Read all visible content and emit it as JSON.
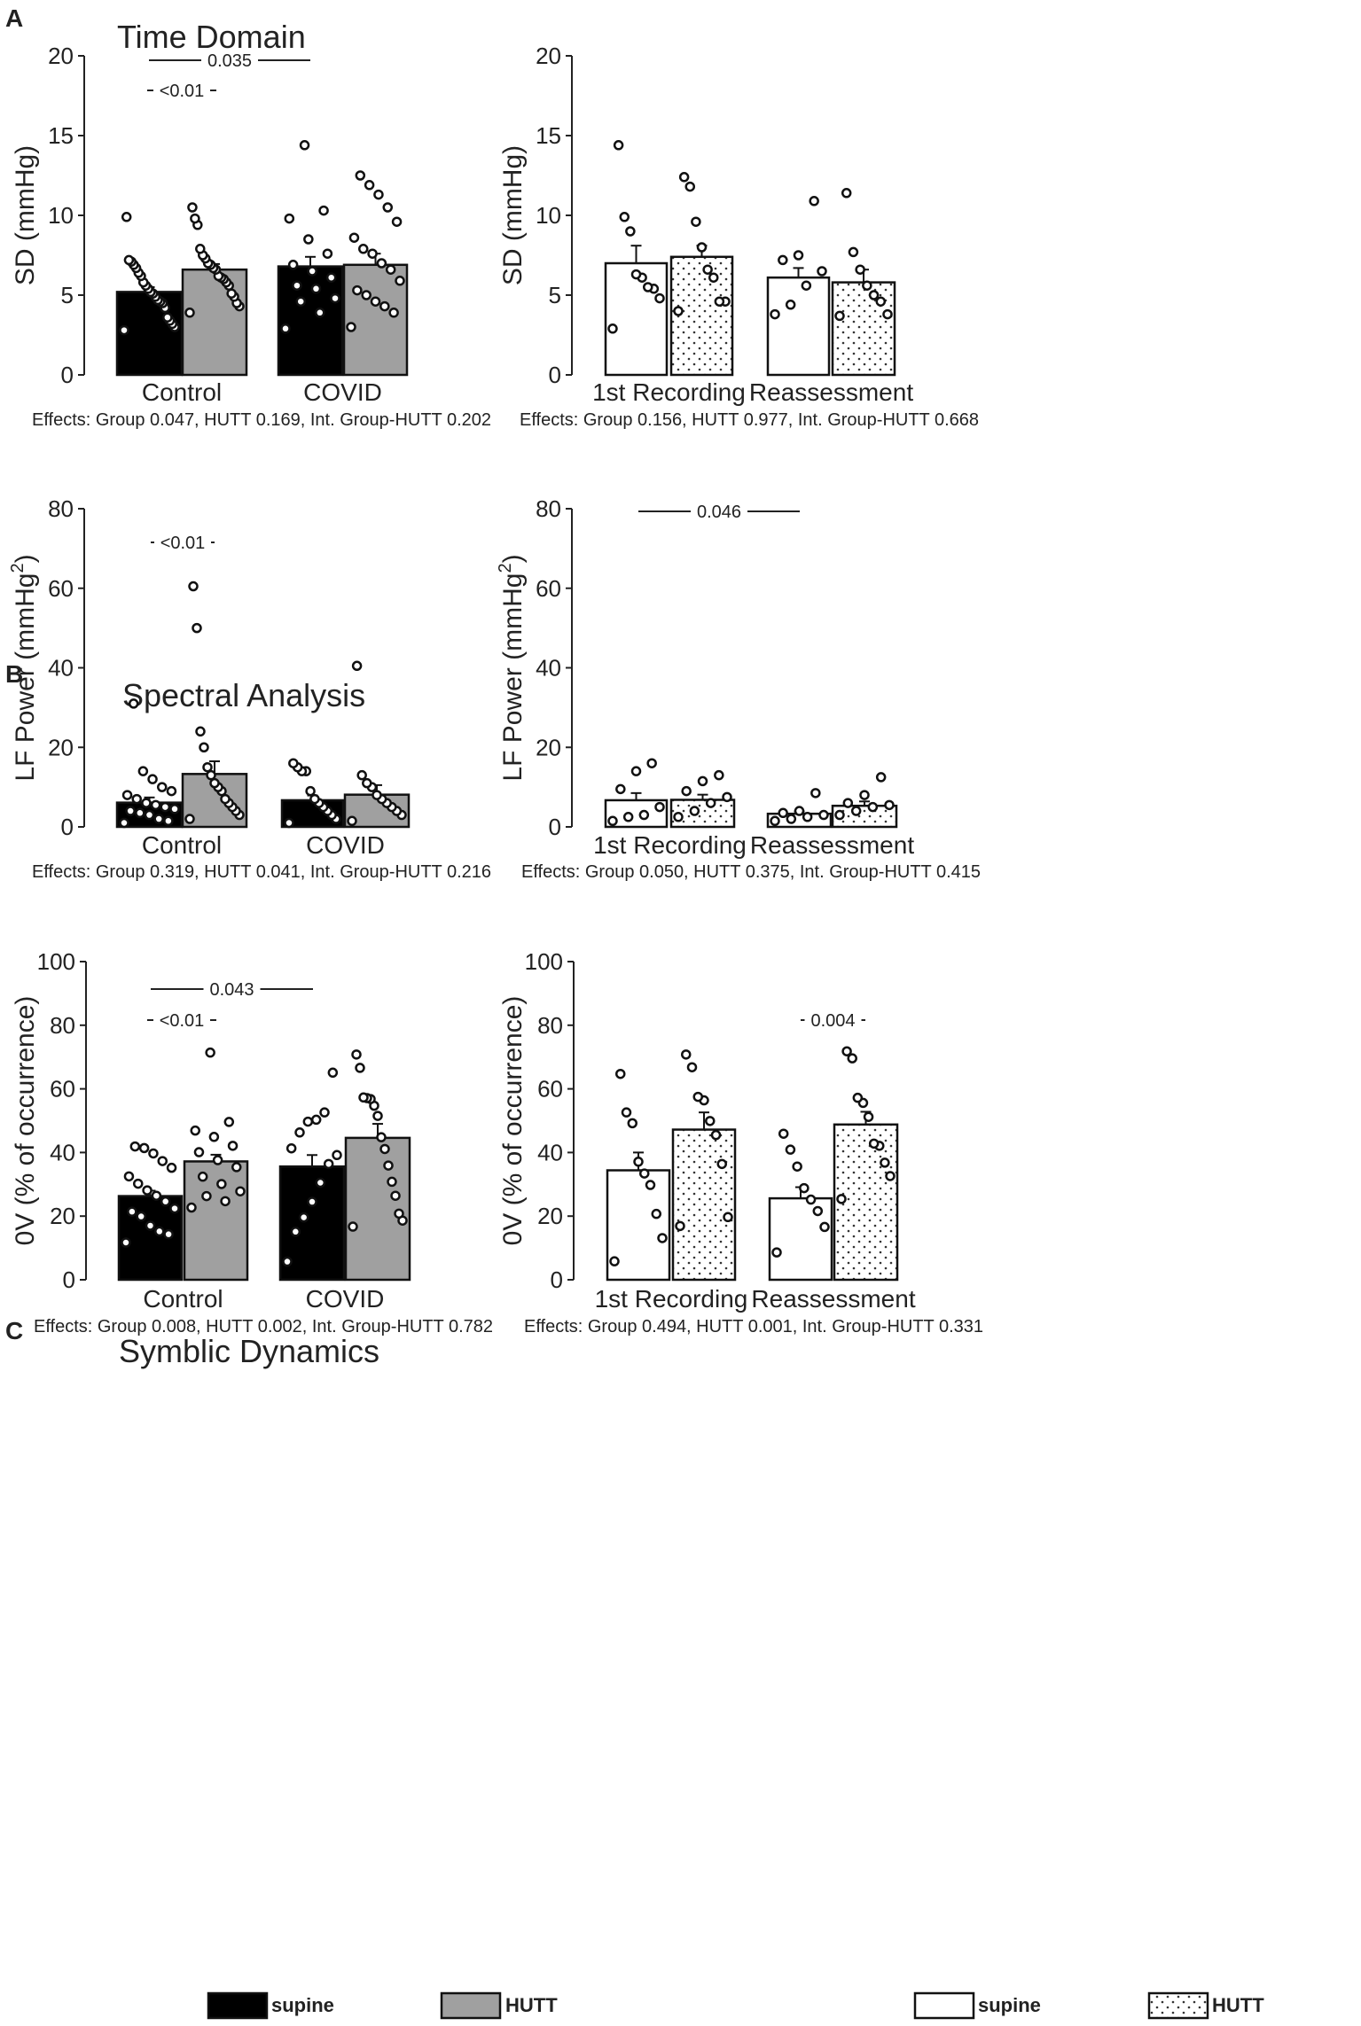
{
  "figure": {
    "sections": [
      {
        "letter": "A",
        "title": "Time Domain"
      },
      {
        "letter": "B",
        "title": "Spectral Analysis"
      },
      {
        "letter": "C",
        "title": "Symblic Dynamics"
      }
    ],
    "legends": [
      {
        "items": [
          {
            "label": "supine",
            "fill": "solid-black"
          },
          {
            "label": "HUTT",
            "fill": "solid-gray"
          }
        ]
      },
      {
        "items": [
          {
            "label": "supine",
            "fill": "white"
          },
          {
            "label": "HUTT",
            "fill": "dots"
          }
        ]
      }
    ]
  },
  "colors": {
    "black_bar": "#000000",
    "gray_bar": "#a0a0a0",
    "white_bar": "#ffffff",
    "ink": "#222222"
  },
  "chart_data": [
    {
      "type": "bar",
      "panel": "A-left",
      "ylabel": "SD (mmHg)",
      "ylim": [
        0,
        20
      ],
      "yticks": [
        0,
        5,
        10,
        15,
        20
      ],
      "categories": [
        "Control",
        "COVID"
      ],
      "series": [
        {
          "name": "supine",
          "fill": "black"
        },
        {
          "name": "HUTT",
          "fill": "gray"
        }
      ],
      "values": [
        [
          5.2,
          6.6
        ],
        [
          6.8,
          6.9
        ]
      ],
      "errors": [
        [
          0.3,
          0.35
        ],
        [
          0.6,
          0.7
        ]
      ],
      "points": [
        [
          [
            2.8,
            3.0,
            3.2,
            3.4,
            3.6,
            4.2,
            4.5,
            4.6,
            4.7,
            4.9,
            5.1,
            5.2,
            5.4,
            5.6,
            5.8,
            6.2,
            6.4,
            6.7,
            6.9,
            7.1,
            7.2,
            9.9
          ],
          [
            3.9,
            4.3,
            4.5,
            4.9,
            5.1,
            5.6,
            5.8,
            6.0,
            6.1,
            6.2,
            6.6,
            6.7,
            6.9,
            7.0,
            7.3,
            7.5,
            7.9,
            9.4,
            9.8,
            10.5
          ]
        ],
        [
          [
            2.9,
            3.9,
            4.6,
            4.8,
            5.4,
            5.6,
            6.1,
            6.5,
            6.9,
            7.6,
            8.5,
            9.8,
            10.3,
            14.4
          ],
          [
            3.0,
            3.9,
            4.3,
            4.6,
            5.0,
            5.3,
            5.9,
            6.6,
            7.0,
            7.6,
            7.9,
            8.6,
            9.6,
            10.5,
            11.3,
            11.9,
            12.5
          ]
        ]
      ],
      "annotations": [
        {
          "text": "0.035",
          "span": "Control-supine to COVID-supine"
        },
        {
          "text": "<0.01",
          "span": "Control supine vs HUTT"
        }
      ],
      "effects": "Effects: Group 0.047, HUTT 0.169, Int. Group-HUTT 0.202"
    },
    {
      "type": "bar",
      "panel": "A-right",
      "ylabel": "SD (mmHg)",
      "ylim": [
        0,
        20
      ],
      "yticks": [
        0,
        5,
        10,
        15,
        20
      ],
      "categories": [
        "1st Recording",
        "Reassessment"
      ],
      "series": [
        {
          "name": "supine",
          "fill": "white"
        },
        {
          "name": "HUTT",
          "fill": "dots"
        }
      ],
      "values": [
        [
          7.0,
          7.4
        ],
        [
          6.1,
          5.8
        ]
      ],
      "errors": [
        [
          1.1,
          0.7
        ],
        [
          0.6,
          0.8
        ]
      ],
      "points": [
        [
          [
            2.9,
            4.8,
            5.4,
            5.5,
            6.1,
            6.3,
            9.0,
            9.9,
            14.4
          ],
          [
            4.0,
            4.6,
            4.6,
            6.1,
            6.6,
            8.0,
            9.6,
            11.8,
            12.4
          ]
        ],
        [
          [
            3.8,
            4.4,
            5.6,
            6.5,
            7.2,
            7.5,
            10.9
          ],
          [
            3.7,
            3.8,
            4.6,
            5.0,
            5.6,
            6.6,
            7.7,
            11.4
          ]
        ]
      ],
      "annotations": [],
      "effects": "Effects: Group 0.156, HUTT 0.977, Int. Group-HUTT 0.668"
    },
    {
      "type": "bar",
      "panel": "B-left",
      "ylabel": "LF Power (mmHg",
      "ylabel_sup": "2",
      "ylabel_end": ")",
      "ylim": [
        0,
        80
      ],
      "yticks": [
        0,
        20,
        40,
        60,
        80
      ],
      "categories": [
        "Control",
        "COVID"
      ],
      "series": [
        {
          "name": "supine",
          "fill": "black"
        },
        {
          "name": "HUTT",
          "fill": "gray"
        }
      ],
      "values": [
        [
          6.1,
          13.3
        ],
        [
          6.7,
          8.1
        ]
      ],
      "errors": [
        [
          1.3,
          3.2
        ],
        [
          1.2,
          2.4
        ]
      ],
      "points": [
        [
          [
            1.0,
            1.5,
            2.0,
            3.0,
            3.5,
            4.0,
            4.5,
            5.0,
            5.5,
            6.0,
            7.0,
            8.0,
            9.0,
            10.0,
            12.0,
            14.0,
            31.0
          ],
          [
            2.0,
            3.0,
            4.0,
            5.0,
            6.0,
            7.0,
            9.0,
            10.0,
            11.0,
            13.0,
            15.0,
            20.0,
            24.0,
            50.0,
            60.5
          ]
        ],
        [
          [
            1.0,
            2.0,
            3.0,
            4.0,
            5.0,
            6.0,
            7.0,
            9.0,
            14.0,
            14.0,
            15.0,
            16.0
          ],
          [
            1.5,
            3.0,
            4.0,
            5.0,
            6.0,
            7.0,
            8.0,
            10.0,
            11.0,
            13.0,
            40.5
          ]
        ]
      ],
      "annotations": [
        {
          "text": "<0.01",
          "span": "Control supine vs HUTT"
        }
      ],
      "effects": "Effects: Group 0.319, HUTT 0.041, Int. Group-HUTT 0.216"
    },
    {
      "type": "bar",
      "panel": "B-right",
      "ylabel": "LF Power (mmHg",
      "ylabel_sup": "2",
      "ylabel_end": ")",
      "ylim": [
        0,
        80
      ],
      "yticks": [
        0,
        20,
        40,
        60,
        80
      ],
      "categories": [
        "1st Recording",
        "Reassessment"
      ],
      "series": [
        {
          "name": "supine",
          "fill": "white"
        },
        {
          "name": "HUTT",
          "fill": "dots"
        }
      ],
      "values": [
        [
          6.7,
          6.8
        ],
        [
          3.3,
          5.3
        ]
      ],
      "errors": [
        [
          1.8,
          1.3
        ],
        [
          0.6,
          1.1
        ]
      ],
      "points": [
        [
          [
            1.5,
            2.5,
            3.0,
            5.0,
            9.5,
            14.0,
            16.0
          ],
          [
            2.5,
            4.0,
            6.0,
            7.5,
            9.0,
            11.5,
            13.0
          ]
        ],
        [
          [
            1.5,
            2.0,
            2.5,
            3.0,
            3.5,
            4.0,
            8.5
          ],
          [
            3.0,
            4.0,
            5.0,
            5.5,
            6.0,
            8.0,
            12.5
          ]
        ]
      ],
      "annotations": [
        {
          "text": "0.046",
          "span": "1st Recording to Reassessment"
        }
      ],
      "effects": "Effects: Group 0.050, HUTT 0.375, Int. Group-HUTT 0.415"
    },
    {
      "type": "bar",
      "panel": "C-left",
      "ylabel": "0V (% of occurrence)",
      "ylim": [
        0,
        100
      ],
      "yticks": [
        0,
        20,
        40,
        60,
        80,
        100
      ],
      "categories": [
        "Control",
        "COVID"
      ],
      "series": [
        {
          "name": "supine",
          "fill": "black"
        },
        {
          "name": "HUTT",
          "fill": "gray"
        }
      ],
      "values": [
        [
          26.3,
          37.2
        ],
        [
          35.6,
          44.6
        ]
      ],
      "errors": [
        [
          1.7,
          2.1
        ],
        [
          3.6,
          4.4
        ]
      ],
      "points": [
        [
          [
            11.7,
            14.3,
            15.2,
            17.0,
            19.9,
            21.4,
            22.4,
            24.6,
            26.4,
            28.1,
            30.2,
            32.5,
            35.2,
            37.3,
            39.7,
            41.4,
            41.9
          ],
          [
            22.7,
            24.7,
            26.3,
            27.8,
            30.1,
            32.4,
            35.4,
            37.6,
            40.1,
            42.1,
            44.9,
            46.9,
            49.6,
            71.4
          ]
        ],
        [
          [
            5.7,
            15.1,
            19.6,
            24.5,
            30.5,
            36.4,
            39.2,
            41.3,
            46.3,
            49.7,
            50.3,
            52.6,
            65.1
          ],
          [
            16.7,
            18.6,
            20.8,
            26.4,
            30.8,
            35.9,
            41.1,
            44.8,
            51.5,
            54.7,
            56.8,
            57.1,
            57.3,
            66.6,
            70.8
          ]
        ]
      ],
      "annotations": [
        {
          "text": "0.043",
          "span": "Control-supine to COVID-supine"
        },
        {
          "text": "<0.01",
          "span": "Control supine vs HUTT"
        }
      ],
      "effects": "Effects: Group 0.008, HUTT 0.002, Int. Group-HUTT 0.782"
    },
    {
      "type": "bar",
      "panel": "C-right",
      "ylabel": "0V (% of occurrence)",
      "ylim": [
        0,
        100
      ],
      "yticks": [
        0,
        20,
        40,
        60,
        80,
        100
      ],
      "categories": [
        "1st Recording",
        "Reassessment"
      ],
      "series": [
        {
          "name": "supine",
          "fill": "white"
        },
        {
          "name": "HUTT",
          "fill": "dots"
        }
      ],
      "values": [
        [
          34.4,
          47.2
        ],
        [
          25.6,
          48.8
        ]
      ],
      "errors": [
        [
          5.6,
          5.4
        ],
        [
          3.5,
          4.0
        ]
      ],
      "points": [
        [
          [
            5.8,
            13.1,
            20.7,
            29.8,
            33.4,
            37.1,
            49.2,
            52.6,
            64.7
          ],
          [
            16.9,
            19.7,
            36.4,
            45.5,
            49.9,
            56.4,
            57.5,
            66.8,
            70.8
          ]
        ],
        [
          [
            8.6,
            16.6,
            21.6,
            25.2,
            28.8,
            35.6,
            40.9,
            45.9
          ],
          [
            25.4,
            32.6,
            36.8,
            42.1,
            42.8,
            51.2,
            55.6,
            57.2,
            69.6,
            71.8
          ]
        ]
      ],
      "annotations": [
        {
          "text": "0.004",
          "span": "Reassessment supine vs HUTT"
        }
      ],
      "effects": "Effects: Group 0.494, HUTT 0.001, Int. Group-HUTT 0.331"
    }
  ]
}
